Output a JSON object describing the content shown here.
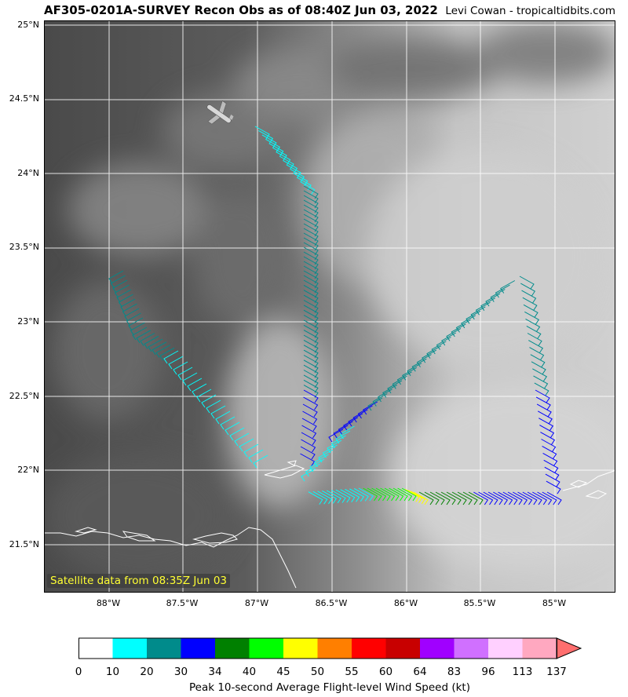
{
  "header": {
    "title": "AF305-0201A-SURVEY Recon Obs as of 08:40Z Jun 03, 2022",
    "credit": "Levi Cowan - tropicaltidbits.com"
  },
  "map": {
    "lat_labels": [
      "25°N",
      "24.5°N",
      "24°N",
      "23.5°N",
      "23°N",
      "22.5°N",
      "22°N",
      "21.5°N"
    ],
    "lon_labels": [
      "88°W",
      "87.5°W",
      "87°W",
      "86.5°W",
      "86°W",
      "85.5°W",
      "85°W"
    ],
    "satellite_note": "Satellite data from 08:35Z Jun 03",
    "icons": [
      "aircraft-icon"
    ]
  },
  "colorbar": {
    "ticks": [
      "0",
      "10",
      "20",
      "30",
      "34",
      "40",
      "45",
      "50",
      "55",
      "60",
      "64",
      "83",
      "96",
      "113",
      "137"
    ],
    "colors": [
      "#ffffff",
      "#00ffff",
      "#008b8b",
      "#0000ff",
      "#008000",
      "#00ff00",
      "#ffff00",
      "#ff7f00",
      "#ff0000",
      "#c80000",
      "#a000ff",
      "#d070ff",
      "#ffd0ff",
      "#ffa8c0"
    ],
    "label": "Peak 10-second Average Flight-level Wind Speed (kt)"
  }
}
